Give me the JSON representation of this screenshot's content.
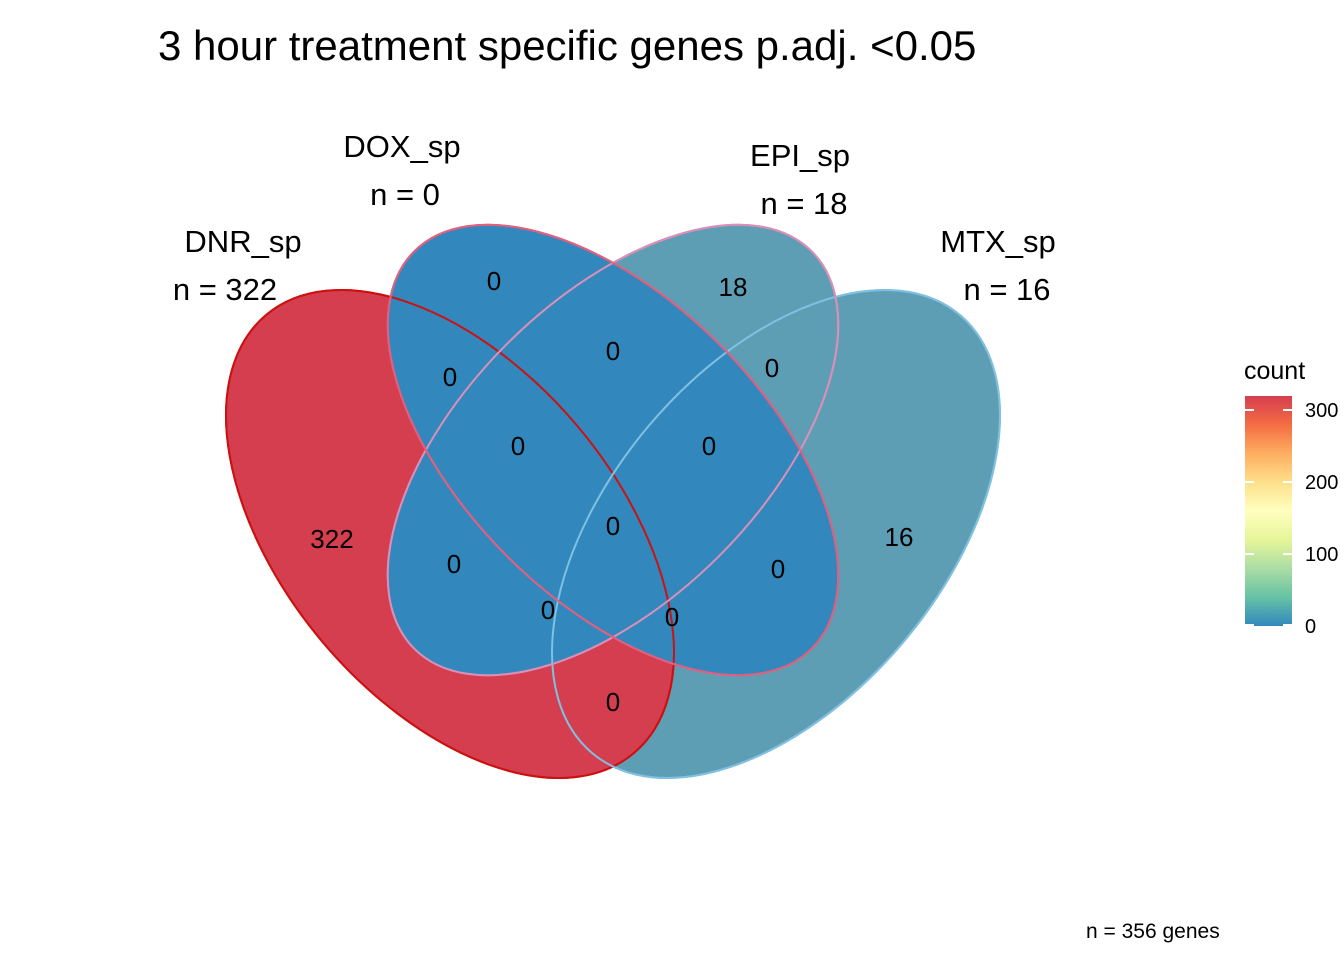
{
  "title": "3 hour treatment specific genes p.adj. <0.05",
  "footnote": "n = 356 genes",
  "sets": [
    {
      "name": "DNR_sp",
      "n_label": "n = 322",
      "fill": "#D53E4F",
      "stroke": "#CC1111"
    },
    {
      "name": "DOX_sp",
      "n_label": "n = 0",
      "fill": "#3288BD",
      "stroke": "#E06080"
    },
    {
      "name": "EPI_sp",
      "n_label": "n = 18",
      "fill": "#5E9EB5",
      "stroke": "#D890B8"
    },
    {
      "name": "MTX_sp",
      "n_label": "n = 16",
      "fill": "#5E9EB5",
      "stroke": "#80C0E0"
    }
  ],
  "regions": [
    {
      "sets": [
        "DNR_sp"
      ],
      "count": "322"
    },
    {
      "sets": [
        "DOX_sp"
      ],
      "count": "0"
    },
    {
      "sets": [
        "EPI_sp"
      ],
      "count": "18"
    },
    {
      "sets": [
        "MTX_sp"
      ],
      "count": "16"
    },
    {
      "sets": [
        "DNR_sp",
        "DOX_sp"
      ],
      "count": "0"
    },
    {
      "sets": [
        "DOX_sp",
        "EPI_sp"
      ],
      "count": "0"
    },
    {
      "sets": [
        "EPI_sp",
        "MTX_sp"
      ],
      "count": "0"
    },
    {
      "sets": [
        "DOX_sp",
        "EPI_sp",
        "DNR_sp"
      ],
      "count": "0"
    },
    {
      "sets": [
        "DOX_sp",
        "EPI_sp",
        "MTX_sp"
      ],
      "count": "0"
    },
    {
      "sets": [
        "DNR_sp",
        "DOX_sp",
        "EPI_sp",
        "MTX_sp"
      ],
      "count": "0"
    },
    {
      "sets": [
        "DNR_sp",
        "EPI_sp"
      ],
      "count": "0"
    },
    {
      "sets": [
        "DOX_sp",
        "MTX_sp"
      ],
      "count": "0"
    },
    {
      "sets": [
        "DNR_sp",
        "DOX_sp",
        "MTX_sp"
      ],
      "count": "0"
    },
    {
      "sets": [
        "DNR_sp",
        "EPI_sp",
        "MTX_sp"
      ],
      "count": "0"
    },
    {
      "sets": [
        "DNR_sp",
        "MTX_sp"
      ],
      "count": "0"
    }
  ],
  "legend": {
    "title": "count",
    "ticks": [
      "300",
      "200",
      "100",
      "0"
    ],
    "tick_values": [
      300,
      200,
      100,
      0
    ],
    "range": [
      0,
      322
    ],
    "palette": "Spectral",
    "colors": [
      "#D53E4F",
      "#F46D43",
      "#FDAE61",
      "#FEE08B",
      "#FFFFBF",
      "#E6F598",
      "#ABDDA4",
      "#66C2A5",
      "#3288BD"
    ]
  }
}
